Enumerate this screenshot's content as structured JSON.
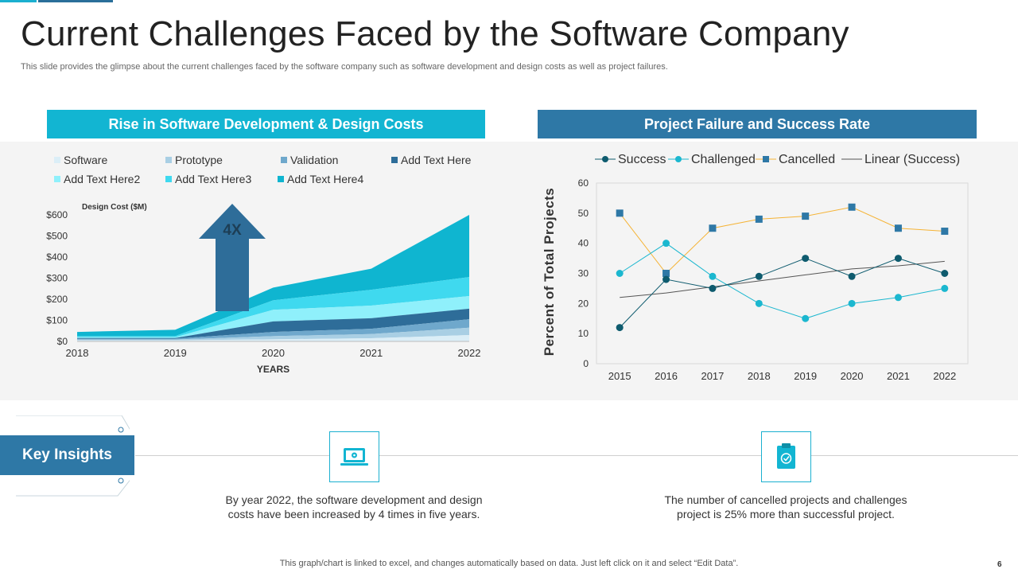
{
  "slide": {
    "title": "Current Challenges Faced by the Software Company",
    "subtitle": "This slide provides the glimpse about the current challenges faced by the software company such as software development and design costs as well as project failures.",
    "footer": "This graph/chart is linked to excel,  and changes automatically based on data. Just left click on it and select “Edit Data”.",
    "page_number": "6"
  },
  "left_panel": {
    "header": "Rise in Software Development & Design Costs"
  },
  "right_panel": {
    "header": "Project Failure and Success Rate"
  },
  "insights": {
    "label": "Key Insights",
    "items": [
      {
        "icon": "laptop-gear-icon",
        "text_line1": "By year 2022, the software development and design",
        "text_line2": "costs have been increased by 4 times in five years."
      },
      {
        "icon": "clipboard-check-icon",
        "text_line1": "The number of cancelled projects and challenges",
        "text_line2": "project is 25% more than successful project."
      }
    ]
  },
  "colors": {
    "cyan": "#12b5d2",
    "blue": "#2e78a6",
    "dark_teal": "#0e5b6e",
    "orange_line": "#f5b335"
  },
  "chart_data": [
    {
      "type": "area",
      "stacked": true,
      "x": [
        "2018",
        "2019",
        "2020",
        "2021",
        "2022"
      ],
      "series": [
        {
          "name": "Software",
          "color": "#dbeef7",
          "values": [
            5,
            5,
            10,
            15,
            30
          ]
        },
        {
          "name": "Prototype",
          "color": "#a9cfe4",
          "values": [
            4,
            4,
            15,
            20,
            35
          ]
        },
        {
          "name": "Validation",
          "color": "#6fa8cc",
          "values": [
            4,
            4,
            20,
            25,
            40
          ]
        },
        {
          "name": "Add Text Here",
          "color": "#2e6d99",
          "values": [
            3,
            3,
            50,
            50,
            50
          ]
        },
        {
          "name": "Add Text Here2",
          "color": "#8ff0fb",
          "values": [
            4,
            4,
            55,
            60,
            60
          ]
        },
        {
          "name": "Add Text Here3",
          "color": "#3fd9ef",
          "values": [
            5,
            5,
            45,
            75,
            90
          ]
        },
        {
          "name": "Add Text Here4",
          "color": "#0fb5d0",
          "values": [
            20,
            30,
            60,
            100,
            295
          ]
        }
      ],
      "yticks": [
        "$0",
        "$100",
        "$200",
        "$300",
        "$400",
        "$500",
        "$600"
      ],
      "ylim": [
        0,
        600
      ],
      "ylabel": "Design Cost ($M)",
      "xlabel": "YEARS",
      "annotation": "4X"
    },
    {
      "type": "line",
      "x": [
        "2015",
        "2016",
        "2017",
        "2018",
        "2019",
        "2020",
        "2021",
        "2022"
      ],
      "series": [
        {
          "name": "Success",
          "color": "#0e5b6e",
          "marker": "circle",
          "values": [
            12,
            28,
            25,
            29,
            35,
            29,
            35,
            30
          ]
        },
        {
          "name": "Challenged",
          "color": "#1bb7cf",
          "marker": "circle",
          "values": [
            30,
            40,
            29,
            20,
            15,
            20,
            22,
            25
          ]
        },
        {
          "name": "Cancelled",
          "color": "#f5b335",
          "marker": "square",
          "marker_color": "#2e78a6",
          "values": [
            50,
            30,
            45,
            48,
            49,
            52,
            45,
            44
          ]
        },
        {
          "name": "Linear (Success)",
          "color": "#555555",
          "marker": "none",
          "values": [
            22,
            23.5,
            25.5,
            27.5,
            29.5,
            31.5,
            32.5,
            34
          ]
        }
      ],
      "ylim": [
        0,
        60
      ],
      "yticks": [
        "0",
        "10",
        "20",
        "30",
        "40",
        "50",
        "60"
      ],
      "ylabel": "Percent of Total Projects"
    }
  ]
}
